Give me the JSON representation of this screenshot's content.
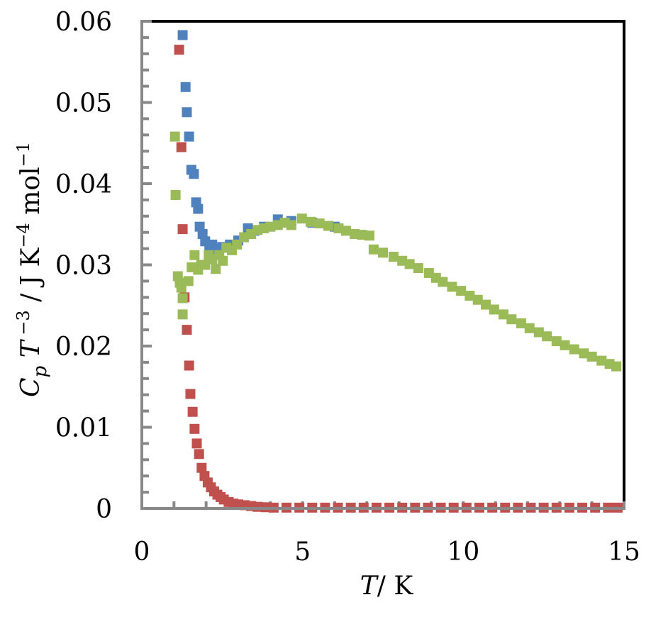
{
  "chart_data": {
    "type": "scatter",
    "title": "",
    "xlabel": {
      "var": "T",
      "unit": "/ K"
    },
    "ylabel": {
      "c": "C",
      "sub": "p",
      "t": " T",
      "sup1": " −3",
      "unit": " / J K",
      "sup2": "−4",
      "mol": " mol",
      "sup3": "−1"
    },
    "xlim": [
      0,
      15
    ],
    "ylim": [
      0,
      0.06
    ],
    "xticks": [
      "0",
      "5",
      "10",
      "15"
    ],
    "xtick_values": [
      0,
      5,
      10,
      15
    ],
    "yticks": [
      "0",
      "0.01",
      "0.02",
      "0.03",
      "0.04",
      "0.05",
      "0.06"
    ],
    "ytick_values": [
      0,
      0.01,
      0.02,
      0.03,
      0.04,
      0.05,
      0.06
    ],
    "grid": false,
    "legend": "none",
    "series": [
      {
        "name": "blue",
        "color": "#4F81BD",
        "points": [
          [
            1.27,
            0.0583
          ],
          [
            1.36,
            0.0519
          ],
          [
            1.4,
            0.0488
          ],
          [
            1.47,
            0.0458
          ],
          [
            1.54,
            0.0417
          ],
          [
            1.62,
            0.0412
          ],
          [
            1.69,
            0.0377
          ],
          [
            1.75,
            0.0369
          ],
          [
            1.8,
            0.0347
          ],
          [
            1.89,
            0.0338
          ],
          [
            1.97,
            0.0329
          ],
          [
            2.1,
            0.0322
          ],
          [
            2.19,
            0.0325
          ],
          [
            2.32,
            0.0319
          ],
          [
            2.5,
            0.0322
          ],
          [
            2.74,
            0.0325
          ],
          [
            3.0,
            0.033
          ],
          [
            3.3,
            0.0345
          ],
          [
            3.5,
            0.0342
          ],
          [
            3.8,
            0.0347
          ],
          [
            4.23,
            0.0356
          ],
          [
            4.65,
            0.0354
          ],
          [
            5.3,
            0.0352
          ],
          [
            6.0,
            0.0347
          ]
        ]
      },
      {
        "name": "red",
        "color": "#C0504D",
        "points": [
          [
            1.16,
            0.0565
          ],
          [
            1.23,
            0.0445
          ],
          [
            1.27,
            0.0344
          ],
          [
            1.33,
            0.026
          ],
          [
            1.4,
            0.022
          ],
          [
            1.47,
            0.0176
          ],
          [
            1.51,
            0.0141
          ],
          [
            1.58,
            0.0119
          ],
          [
            1.64,
            0.0098
          ],
          [
            1.71,
            0.008
          ],
          [
            1.78,
            0.0067
          ],
          [
            1.86,
            0.005
          ],
          [
            1.95,
            0.004
          ],
          [
            2.05,
            0.0032
          ],
          [
            2.15,
            0.0026
          ],
          [
            2.25,
            0.0021
          ],
          [
            2.35,
            0.0017
          ],
          [
            2.45,
            0.0014
          ],
          [
            2.55,
            0.0011
          ],
          [
            2.7,
            0.0008
          ],
          [
            2.85,
            0.0006
          ],
          [
            3.0,
            0.0005
          ],
          [
            3.2,
            0.0004
          ],
          [
            3.4,
            0.0003
          ],
          [
            3.6,
            0.0002
          ],
          [
            3.85,
            0.00015
          ],
          [
            4.1,
            0.0001
          ],
          [
            4.5,
            0.0001
          ],
          [
            4.9,
            0.0001
          ],
          [
            5.3,
            0.0001
          ],
          [
            5.7,
            0.0001
          ],
          [
            6.1,
            0.0001
          ],
          [
            6.5,
            0.0001
          ],
          [
            6.9,
            0.0001
          ],
          [
            7.3,
            0.0001
          ],
          [
            7.7,
            0.0001
          ],
          [
            8.1,
            0.0001
          ],
          [
            8.5,
            0.0001
          ],
          [
            8.9,
            0.0001
          ],
          [
            9.3,
            0.0001
          ],
          [
            9.7,
            0.0001
          ],
          [
            10.1,
            0.0001
          ],
          [
            10.5,
            0.0001
          ],
          [
            10.9,
            0.0001
          ],
          [
            11.3,
            0.0001
          ],
          [
            11.7,
            0.0001
          ],
          [
            12.1,
            0.0001
          ],
          [
            12.5,
            0.0001
          ],
          [
            12.9,
            0.0001
          ],
          [
            13.3,
            0.0001
          ],
          [
            13.7,
            0.0001
          ],
          [
            14.1,
            0.0001
          ],
          [
            14.5,
            0.0001
          ],
          [
            14.8,
            0.0001
          ]
        ]
      },
      {
        "name": "green",
        "color": "#9BBB59",
        "points": [
          [
            1.03,
            0.0458
          ],
          [
            1.05,
            0.0386
          ],
          [
            1.12,
            0.0286
          ],
          [
            1.18,
            0.0278
          ],
          [
            1.23,
            0.0272
          ],
          [
            1.27,
            0.0259
          ],
          [
            1.27,
            0.0239
          ],
          [
            1.45,
            0.028
          ],
          [
            1.55,
            0.0297
          ],
          [
            1.64,
            0.0312
          ],
          [
            1.75,
            0.0294
          ],
          [
            1.85,
            0.03
          ],
          [
            1.97,
            0.03
          ],
          [
            2.08,
            0.0312
          ],
          [
            2.19,
            0.0307
          ],
          [
            2.3,
            0.0295
          ],
          [
            2.41,
            0.0312
          ],
          [
            2.52,
            0.0305
          ],
          [
            2.63,
            0.0321
          ],
          [
            2.8,
            0.0318
          ],
          [
            2.96,
            0.0325
          ],
          [
            3.18,
            0.0334
          ],
          [
            3.4,
            0.0338
          ],
          [
            3.6,
            0.0343
          ],
          [
            3.8,
            0.0345
          ],
          [
            4.0,
            0.0347
          ],
          [
            4.23,
            0.0349
          ],
          [
            4.45,
            0.0352
          ],
          [
            4.65,
            0.0349
          ],
          [
            4.98,
            0.0357
          ],
          [
            5.25,
            0.0353
          ],
          [
            5.53,
            0.0351
          ],
          [
            5.8,
            0.0348
          ],
          [
            6.12,
            0.0345
          ],
          [
            6.35,
            0.0342
          ],
          [
            6.62,
            0.0338
          ],
          [
            6.85,
            0.0337
          ],
          [
            7.08,
            0.0336
          ],
          [
            7.21,
            0.0319
          ],
          [
            7.5,
            0.0315
          ],
          [
            7.83,
            0.031
          ],
          [
            8.1,
            0.0305
          ],
          [
            8.33,
            0.0301
          ],
          [
            8.6,
            0.0296
          ],
          [
            8.93,
            0.029
          ],
          [
            9.15,
            0.0284
          ],
          [
            9.36,
            0.0279
          ],
          [
            9.65,
            0.0273
          ],
          [
            9.93,
            0.0268
          ],
          [
            10.2,
            0.0262
          ],
          [
            10.45,
            0.0257
          ],
          [
            10.7,
            0.0251
          ],
          [
            10.96,
            0.0245
          ],
          [
            11.25,
            0.0239
          ],
          [
            11.5,
            0.0233
          ],
          [
            11.8,
            0.0228
          ],
          [
            12.06,
            0.0222
          ],
          [
            12.35,
            0.0217
          ],
          [
            12.6,
            0.0212
          ],
          [
            12.9,
            0.0206
          ],
          [
            13.16,
            0.0201
          ],
          [
            13.45,
            0.0196
          ],
          [
            13.75,
            0.0191
          ],
          [
            14.0,
            0.0187
          ],
          [
            14.3,
            0.0182
          ],
          [
            14.55,
            0.0178
          ],
          [
            14.76,
            0.0175
          ]
        ]
      }
    ]
  }
}
